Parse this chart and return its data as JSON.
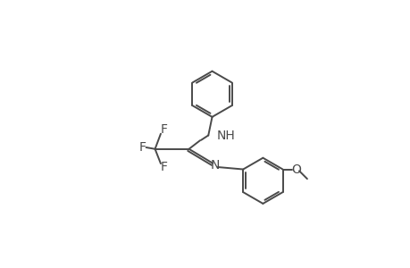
{
  "background_color": "#ffffff",
  "line_color": "#4a4a4a",
  "line_width": 1.4,
  "font_size": 10,
  "figsize": [
    4.6,
    3.0
  ],
  "dpi": 100,
  "xlim": [
    0,
    10
  ],
  "ylim": [
    0,
    6.5
  ]
}
